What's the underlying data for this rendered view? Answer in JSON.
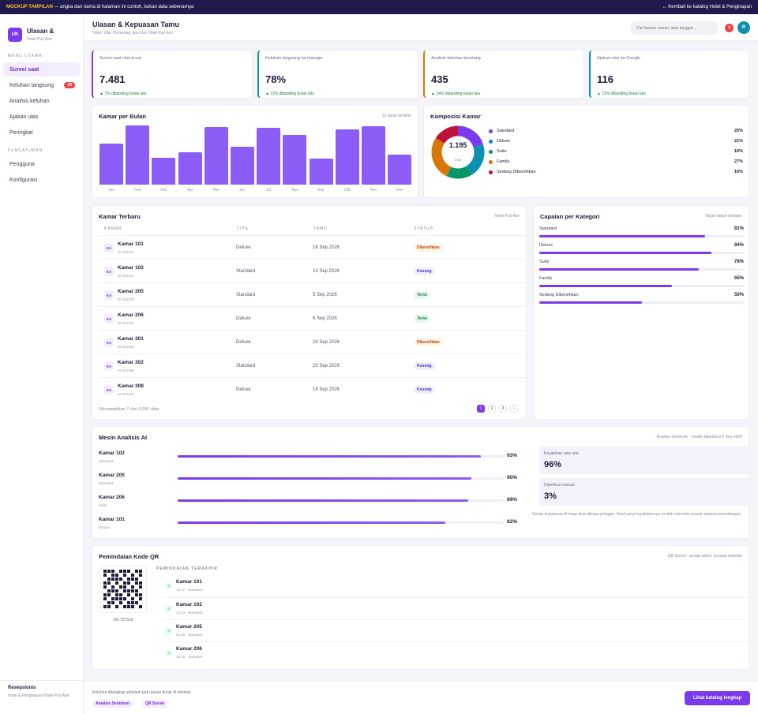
{
  "topbar": {
    "tag": "MOCKUP TAMPILAN",
    "text": " — angka dan nama di halaman ini contoh, bukan data sebenarnya",
    "back_link": "← Kembali ke katalog Hotel & Penginapan"
  },
  "sidebar": {
    "logo": "UK",
    "title": "Ulasan &",
    "subtitle": "Hotel Puri Asri",
    "section_main": "MENU UTAMA",
    "items": [
      {
        "label": "Survei saat"
      },
      {
        "label": "Keluhan langsung",
        "badge": "28"
      },
      {
        "label": "Analisis keluhan"
      },
      {
        "label": "Ajakan ulas"
      },
      {
        "label": "Peringkat"
      }
    ],
    "section_settings": "PENGATURAN",
    "settings_items": [
      {
        "label": "Pengguna"
      },
      {
        "label": "Konfigurasi"
      }
    ],
    "footer_title": "Resepsionis",
    "footer_sub": "Hotel & Penginapan Hotel Puri Asri"
  },
  "header": {
    "title": "Ulasan & Kepuasan Tamu",
    "subtitle": "Hotel, Vila, Homestay, dan Kos Hotel Puri Asri",
    "search_placeholder": "Cari kamar, nomor, atau tanggal...",
    "notif_count": "7",
    "avatar": "R"
  },
  "stats": [
    {
      "label": "Survei saat check-out",
      "value": "7.481",
      "delta": "▲ 7% dibanding bulan lalu",
      "color": "#7c3aed"
    },
    {
      "label": "Keluhan langsung ke manajer",
      "value": "78%",
      "delta": "▲ 11% dibanding bulan lalu",
      "color": "#0d9488"
    },
    {
      "label": "Analisis keluhan berulang",
      "value": "435",
      "delta": "▲ 14% dibanding bulan lalu",
      "color": "#d97706"
    },
    {
      "label": "Ajakan ulas ke Google",
      "value": "116",
      "delta": "▲ 11% dibanding bulan lalu",
      "color": "#0891b2"
    }
  ],
  "chart_data": [
    {
      "type": "bar",
      "title": "Kamar per Bulan",
      "note": "12 bulan terakhir",
      "categories": [
        "Jan",
        "Feb",
        "Mar",
        "Apr",
        "Mei",
        "Jun",
        "Jul",
        "Agu",
        "Sep",
        "Okt",
        "Nov",
        "Des"
      ],
      "values": [
        70,
        100,
        45,
        55,
        98,
        64,
        96,
        84,
        44,
        94,
        99,
        51
      ],
      "color": "#8b5cf6"
    },
    {
      "type": "pie",
      "title": "Komposisi Kamar",
      "center_value": "1.195",
      "center_label": "total",
      "slices": [
        {
          "label": "Standard",
          "value": 20,
          "color": "#7c3aed"
        },
        {
          "label": "Deluxe",
          "value": 21,
          "color": "#0891b2"
        },
        {
          "label": "Suite",
          "value": 16,
          "color": "#059669"
        },
        {
          "label": "Family",
          "value": 27,
          "color": "#d97706"
        },
        {
          "label": "Sedang Dibersihkan",
          "value": 16,
          "color": "#be123c"
        }
      ]
    }
  ],
  "table": {
    "title": "Kamar Terbaru",
    "note": "Hotel Puri Asri",
    "headers": [
      "KAMAR",
      "TIPE",
      "TAMU",
      "STATUS"
    ],
    "rows": [
      {
        "initial": "KA",
        "name": "Kamar 101",
        "id": "ID 001204",
        "type": "Deluxe",
        "date": "16 Sep 2026",
        "status": "Dibersihkan"
      },
      {
        "initial": "KA",
        "name": "Kamar 102",
        "id": "ID 001241",
        "type": "Standard",
        "date": "10 Sep 2026",
        "status": "Kosong"
      },
      {
        "initial": "KA",
        "name": "Kamar 205",
        "id": "ID 001278",
        "type": "Standard",
        "date": "5 Sep 2026",
        "status": "Terisi"
      },
      {
        "initial": "KA",
        "name": "Kamar 206",
        "id": "ID 001315",
        "type": "Deluxe",
        "date": "6 Sep 2026",
        "status": "Terisi"
      },
      {
        "initial": "KA",
        "name": "Kamar 301",
        "id": "ID 001352",
        "type": "Deluxe",
        "date": "24 Sep 2026",
        "status": "Dibersihkan"
      },
      {
        "initial": "KA",
        "name": "Kamar 302",
        "id": "ID 001389",
        "type": "Standard",
        "date": "25 Sep 2026",
        "status": "Kosong"
      },
      {
        "initial": "KA",
        "name": "Kamar 308",
        "id": "ID 001426",
        "type": "Deluxe",
        "date": "19 Sep 2026",
        "status": "Kosong"
      }
    ],
    "footer": "Menampilkan 7 dari 3.041 data",
    "pages": [
      "1",
      "2",
      "3",
      "›"
    ]
  },
  "kategori": {
    "title": "Capaian per Kategori",
    "note": "Target tahun berjalan",
    "items": [
      {
        "name": "Standard",
        "pct": 81
      },
      {
        "name": "Deluxe",
        "pct": 84
      },
      {
        "name": "Suite",
        "pct": 78
      },
      {
        "name": "Family",
        "pct": 65
      },
      {
        "name": "Sedang Dibersihkan",
        "pct": 50
      }
    ]
  },
  "ai": {
    "title": "Mesin Analisis AI",
    "note": "Analisis Sentimen · model diperbarui 5 Sep 2026",
    "rows": [
      {
        "name": "Kamar 102",
        "sub": "Standard",
        "pct": 93
      },
      {
        "name": "Kamar 205",
        "sub": "Standard",
        "pct": 90
      },
      {
        "name": "Kamar 206",
        "sub": "Suite",
        "pct": 89
      },
      {
        "name": "Kamar 101",
        "sub": "Deluxe",
        "pct": 82
      }
    ],
    "confidence_label": "Keyakinan rata-rata",
    "confidence_value": "96%",
    "manual_label": "Diperiksa manual",
    "manual_value": "3%",
    "disclaimer": "Setiap keputusan AI tetap bisa ditinjau petugas. Hasil yang keyakinannya rendah otomatis masuk antrean pemeriksaan."
  },
  "qr": {
    "title": "Pemindaian Kode QR",
    "note": "QR Survei · pindai sekali, tercatat seketika",
    "code": "NS-727526",
    "section": "PEMINDAIAN TERAKHIR",
    "scans": [
      {
        "name": "Kamar 101",
        "sub": "12.47 · Standard"
      },
      {
        "name": "Kamar 102",
        "sub": "12.53 · Standard"
      },
      {
        "name": "Kamar 205",
        "sub": "09.20 · Standard"
      },
      {
        "name": "Kamar 206",
        "sub": "10.25 · Standard"
      }
    ]
  },
  "footer": {
    "text": "Keluhan ditangkap sebelum jadi ulasan buruk di internet.",
    "tags": [
      "Analisis Sentimen",
      "QR Survei"
    ],
    "button": "Lihat katalog lengkap"
  }
}
